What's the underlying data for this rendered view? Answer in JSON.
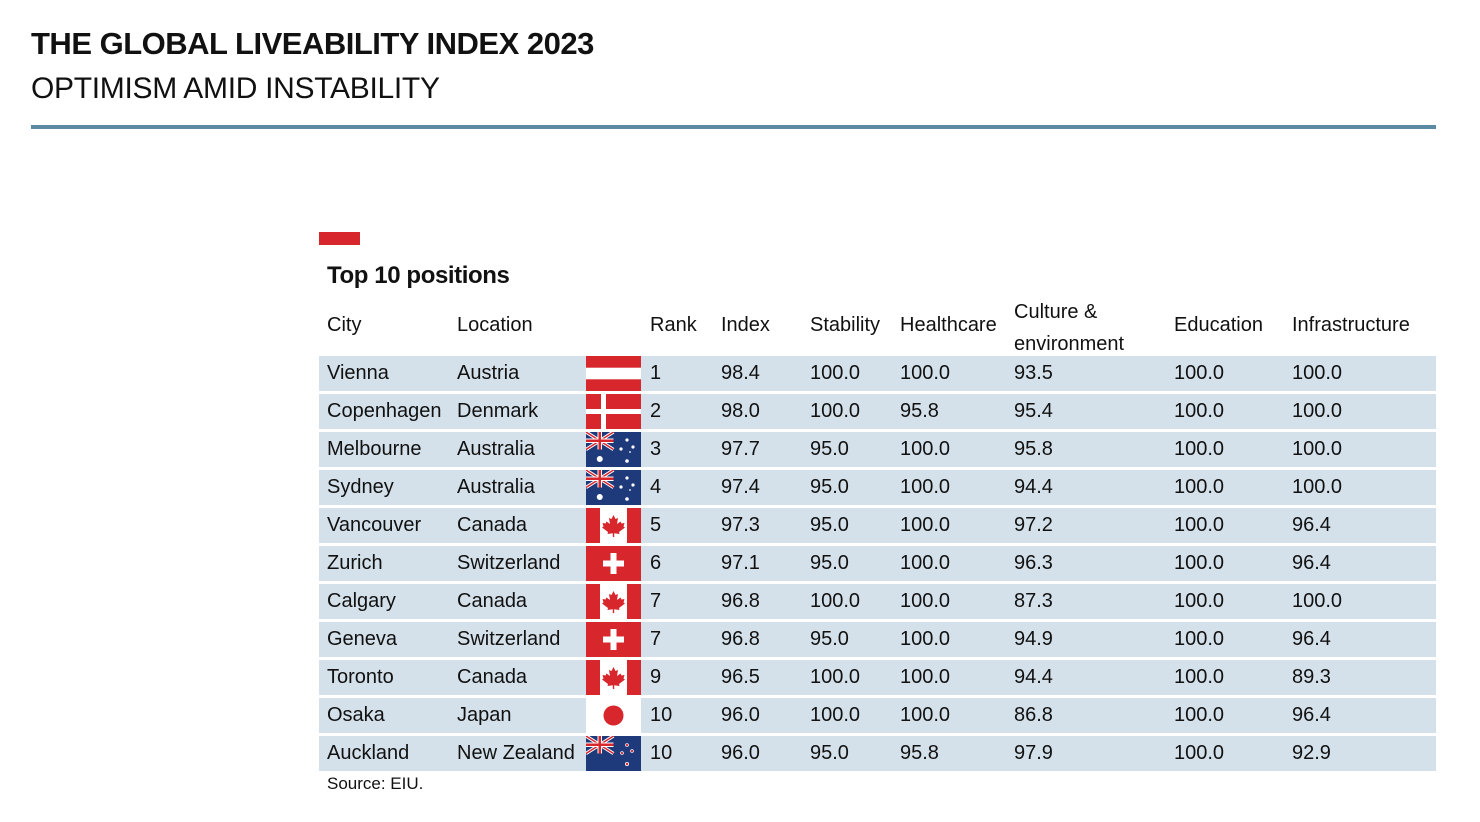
{
  "report": {
    "title": "THE GLOBAL LIVEABILITY INDEX 2023",
    "subtitle": "OPTIMISM AMID INSTABILITY"
  },
  "table": {
    "title": "Top 10 positions",
    "headers": {
      "city": "City",
      "location": "Location",
      "rank": "Rank",
      "index": "Index",
      "stability": "Stability",
      "healthcare": "Healthcare",
      "culture": "Culture & environment",
      "education": "Education",
      "infrastructure": "Infrastructure"
    },
    "rows": [
      {
        "city": "Vienna",
        "location": "Austria",
        "flag": "austria-flag",
        "rank": "1",
        "index": "98.4",
        "stability": "100.0",
        "healthcare": "100.0",
        "culture": "93.5",
        "education": "100.0",
        "infrastructure": "100.0"
      },
      {
        "city": "Copenhagen",
        "location": "Denmark",
        "flag": "denmark-flag",
        "rank": "2",
        "index": "98.0",
        "stability": "100.0",
        "healthcare": "95.8",
        "culture": "95.4",
        "education": "100.0",
        "infrastructure": "100.0"
      },
      {
        "city": "Melbourne",
        "location": "Australia",
        "flag": "australia-flag",
        "rank": "3",
        "index": "97.7",
        "stability": "95.0",
        "healthcare": "100.0",
        "culture": "95.8",
        "education": "100.0",
        "infrastructure": "100.0"
      },
      {
        "city": "Sydney",
        "location": "Australia",
        "flag": "australia-flag",
        "rank": "4",
        "index": "97.4",
        "stability": "95.0",
        "healthcare": "100.0",
        "culture": "94.4",
        "education": "100.0",
        "infrastructure": "100.0"
      },
      {
        "city": "Vancouver",
        "location": "Canada",
        "flag": "canada-flag",
        "rank": "5",
        "index": "97.3",
        "stability": "95.0",
        "healthcare": "100.0",
        "culture": "97.2",
        "education": "100.0",
        "infrastructure": "96.4"
      },
      {
        "city": "Zurich",
        "location": "Switzerland",
        "flag": "switzerland-flag",
        "rank": "6",
        "index": "97.1",
        "stability": "95.0",
        "healthcare": "100.0",
        "culture": "96.3",
        "education": "100.0",
        "infrastructure": "96.4"
      },
      {
        "city": "Calgary",
        "location": "Canada",
        "flag": "canada-flag",
        "rank": "7",
        "index": "96.8",
        "stability": "100.0",
        "healthcare": "100.0",
        "culture": "87.3",
        "education": "100.0",
        "infrastructure": "100.0"
      },
      {
        "city": "Geneva",
        "location": "Switzerland",
        "flag": "switzerland-flag",
        "rank": "7",
        "index": "96.8",
        "stability": "95.0",
        "healthcare": "100.0",
        "culture": "94.9",
        "education": "100.0",
        "infrastructure": "96.4"
      },
      {
        "city": "Toronto",
        "location": "Canada",
        "flag": "canada-flag",
        "rank": "9",
        "index": "96.5",
        "stability": "100.0",
        "healthcare": "100.0",
        "culture": "94.4",
        "education": "100.0",
        "infrastructure": "89.3"
      },
      {
        "city": "Osaka",
        "location": "Japan",
        "flag": "japan-flag",
        "rank": "10",
        "index": "96.0",
        "stability": "100.0",
        "healthcare": "100.0",
        "culture": "86.8",
        "education": "100.0",
        "infrastructure": "96.4"
      },
      {
        "city": "Auckland",
        "location": "New Zealand",
        "flag": "new-zealand-flag",
        "rank": "10",
        "index": "96.0",
        "stability": "95.0",
        "healthcare": "95.8",
        "culture": "97.9",
        "education": "100.0",
        "infrastructure": "92.9"
      }
    ],
    "source": "Source: EIU."
  },
  "colors": {
    "rule": "#5b8ba2",
    "accent": "#d7262c",
    "row_fill": "#d4e1ea",
    "flag_red": "#d7262c",
    "flag_blue": "#1f3a7a",
    "flag_white": "#ffffff"
  }
}
